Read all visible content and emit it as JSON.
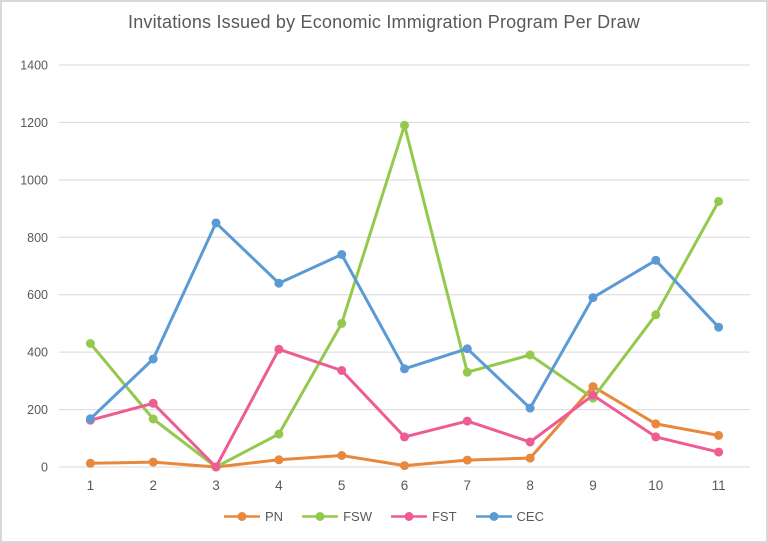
{
  "chart_data": {
    "type": "line",
    "title": "Invitations Issued by Economic Immigration Program Per Draw",
    "categories": [
      "1",
      "2",
      "3",
      "4",
      "5",
      "6",
      "7",
      "8",
      "9",
      "10",
      "11"
    ],
    "series": [
      {
        "name": "PN",
        "color": "#e8883c",
        "values": [
          13,
          17,
          0,
          25,
          40,
          5,
          24,
          31,
          280,
          150,
          110
        ]
      },
      {
        "name": "FSW",
        "color": "#94c94e",
        "values": [
          430,
          167,
          0,
          115,
          500,
          1190,
          330,
          390,
          240,
          530,
          925
        ]
      },
      {
        "name": "FST",
        "color": "#ee5c93",
        "values": [
          163,
          222,
          0,
          410,
          336,
          105,
          160,
          87,
          250,
          105,
          52
        ]
      },
      {
        "name": "CEC",
        "color": "#5b9bd5",
        "values": [
          168,
          376,
          850,
          640,
          740,
          342,
          412,
          205,
          590,
          720,
          487
        ]
      }
    ],
    "xlabel": "",
    "ylabel": "",
    "ylim": [
      0,
      1400
    ],
    "ytick_interval": 200,
    "yticks": [
      0,
      200,
      400,
      600,
      800,
      1000,
      1200,
      1400
    ],
    "grid": true,
    "legend_position": "bottom",
    "marker": "circle"
  },
  "colors": {
    "background": "#ffffff",
    "border": "#d8d8d8",
    "gridline": "#d9d9d9",
    "text": "#595959"
  }
}
